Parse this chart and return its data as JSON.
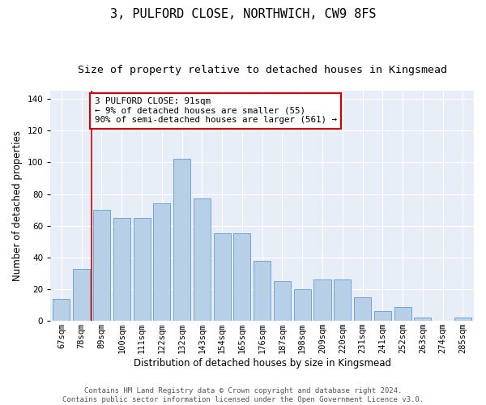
{
  "title": "3, PULFORD CLOSE, NORTHWICH, CW9 8FS",
  "subtitle": "Size of property relative to detached houses in Kingsmead",
  "xlabel": "Distribution of detached houses by size in Kingsmead",
  "ylabel": "Number of detached properties",
  "categories": [
    "67sqm",
    "78sqm",
    "89sqm",
    "100sqm",
    "111sqm",
    "122sqm",
    "132sqm",
    "143sqm",
    "154sqm",
    "165sqm",
    "176sqm",
    "187sqm",
    "198sqm",
    "209sqm",
    "220sqm",
    "231sqm",
    "241sqm",
    "252sqm",
    "263sqm",
    "274sqm",
    "285sqm"
  ],
  "values": [
    14,
    33,
    70,
    65,
    65,
    74,
    102,
    77,
    55,
    55,
    38,
    25,
    20,
    26,
    26,
    15,
    6,
    9,
    2,
    0,
    2
  ],
  "bar_color": "#b8cfe8",
  "bar_edge_color": "#6699cc",
  "vline_color": "#cc0000",
  "vline_x_index": 2,
  "ylim": [
    0,
    145
  ],
  "yticks": [
    0,
    20,
    40,
    60,
    80,
    100,
    120,
    140
  ],
  "annotation_text": "3 PULFORD CLOSE: 91sqm\n← 9% of detached houses are smaller (55)\n90% of semi-detached houses are larger (561) →",
  "annotation_box_color": "#cc0000",
  "footer_line1": "Contains HM Land Registry data © Crown copyright and database right 2024.",
  "footer_line2": "Contains public sector information licensed under the Open Government Licence v3.0.",
  "plot_bg_color": "#e8eef8",
  "title_fontsize": 11,
  "subtitle_fontsize": 9.5,
  "axis_label_fontsize": 8.5,
  "tick_fontsize": 7.5,
  "annotation_fontsize": 7.8,
  "footer_fontsize": 6.5,
  "grid_color": "#ffffff"
}
